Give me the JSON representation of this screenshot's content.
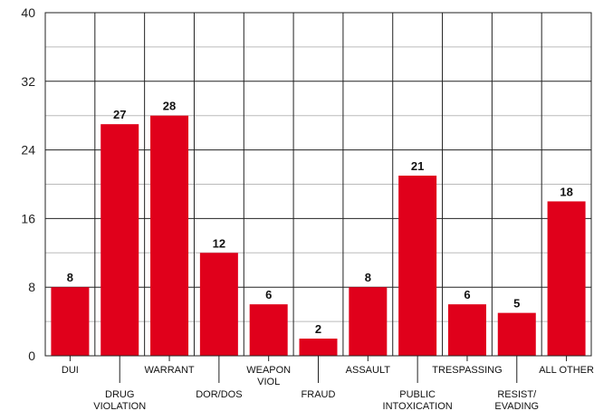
{
  "chart_data": {
    "type": "bar",
    "categories": [
      [
        "DUI"
      ],
      [
        "DRUG",
        "VIOLATION"
      ],
      [
        "WARRANT"
      ],
      [
        "DOR/DOS"
      ],
      [
        "WEAPON",
        "VIOL"
      ],
      [
        "FRAUD"
      ],
      [
        "ASSAULT"
      ],
      [
        "PUBLIC",
        "INTOXICATION"
      ],
      [
        "TRESPASSING"
      ],
      [
        "RESIST/",
        "EVADING"
      ],
      [
        "ALL OTHER"
      ]
    ],
    "values": [
      8,
      27,
      28,
      12,
      6,
      2,
      8,
      21,
      6,
      5,
      18
    ],
    "ylim": [
      0,
      40
    ],
    "yticks": [
      0,
      8,
      16,
      24,
      32,
      40
    ],
    "minor_gridlines": [
      4,
      12,
      20,
      28,
      36
    ],
    "title": "",
    "xlabel": "",
    "ylabel": "",
    "grid": true,
    "bar_color": "#e0001b",
    "axis_color": "#222222",
    "minor_grid_color": "#bbbbbb"
  }
}
